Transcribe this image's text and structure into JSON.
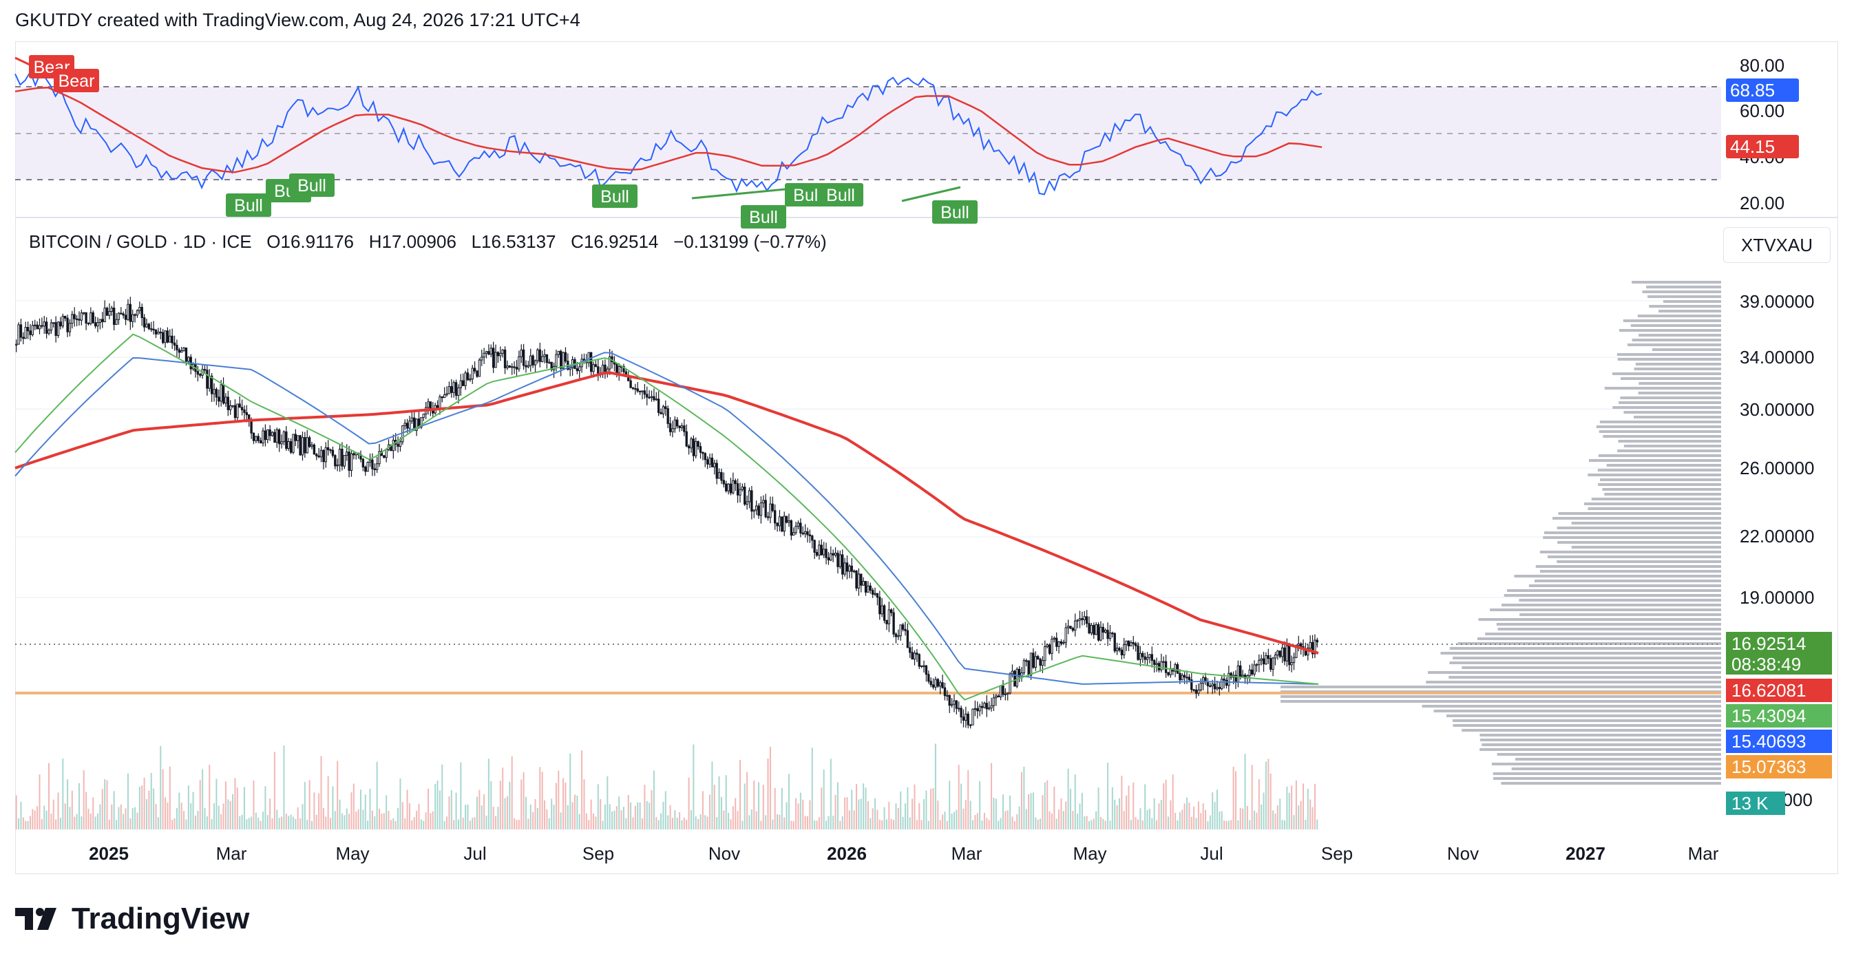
{
  "header": {
    "text": "GKUTDY created with TradingView.com, Aug 24, 2026 17:21 UTC+4"
  },
  "legend": {
    "title": "BITCOIN / GOLD · 1D · ICE",
    "open": "O16.91176",
    "high": "H17.00906",
    "low": "L16.53137",
    "close": "C16.92514",
    "change": "−0.13199 (−0.77%)"
  },
  "symbol": "XTVXAU",
  "price_tags": {
    "last": "16.92514",
    "countdown": "08:38:49",
    "ma200": "16.62081",
    "ma20": "15.43094",
    "ma50": "15.40693",
    "hline": "15.07363",
    "volume": "13 K"
  },
  "rsi_tags": {
    "rsi": "68.85",
    "ma": "44.15"
  },
  "rsi_axis": [
    "80.00",
    "60.00",
    "40.00",
    "20.00"
  ],
  "price_axis": [
    "39.00000",
    "34.00000",
    "30.00000",
    "26.00000",
    "22.00000",
    "19.00000",
    "0000"
  ],
  "x_axis": [
    {
      "label": "2025",
      "bold": true
    },
    {
      "label": "Mar",
      "bold": false
    },
    {
      "label": "May",
      "bold": false
    },
    {
      "label": "Jul",
      "bold": false
    },
    {
      "label": "Sep",
      "bold": false
    },
    {
      "label": "Nov",
      "bold": false
    },
    {
      "label": "2026",
      "bold": true
    },
    {
      "label": "Mar",
      "bold": false
    },
    {
      "label": "May",
      "bold": false
    },
    {
      "label": "Jul",
      "bold": false
    },
    {
      "label": "Sep",
      "bold": false
    },
    {
      "label": "Nov",
      "bold": false
    },
    {
      "label": "2027",
      "bold": true
    },
    {
      "label": "Mar",
      "bold": false
    }
  ],
  "rsi_signals": [
    {
      "label": "Bear",
      "kind": "bear"
    },
    {
      "label": "Bear",
      "kind": "bear"
    },
    {
      "label": "Bull",
      "kind": "bull"
    },
    {
      "label": "Bull",
      "kind": "bull"
    },
    {
      "label": "Bull",
      "kind": "bull"
    },
    {
      "label": "Bull",
      "kind": "bull"
    },
    {
      "label": "Bull",
      "kind": "bull"
    },
    {
      "label": "Bull",
      "kind": "bull"
    },
    {
      "label": "Bull",
      "kind": "bull"
    },
    {
      "label": "Bull",
      "kind": "bull"
    }
  ],
  "logo": {
    "text": "TradingView"
  },
  "colors": {
    "ma200": "#e53935",
    "ma50": "#4a7fd4",
    "ma20": "#5cb85c",
    "hline": "#f0b57a",
    "rsi": "#2962ff",
    "rsi_ma": "#e53935",
    "bull": "#43a047",
    "bear": "#e53935",
    "last_price": "#4a9a3a",
    "volume_tag": "#26a69a",
    "rsi_band": "#ede7f6"
  },
  "chart_data": {
    "type": "line",
    "title": "BITCOIN / GOLD · 1D · ICE",
    "x": [
      "2024-12",
      "2025-01",
      "2025-03",
      "2025-05",
      "2025-07",
      "2025-09",
      "2025-11",
      "2026-01",
      "2026-03",
      "2026-05",
      "2026-07",
      "2026-08"
    ],
    "ylim": [
      13,
      41
    ],
    "series": [
      {
        "name": "",
        "values": [
          36.0,
          38.0,
          28.5,
          26.0,
          34.0,
          33.5,
          25.0,
          20.5,
          14.0,
          17.8,
          15.3,
          16.9
        ]
      },
      {
        "name": "",
        "values": [
          26.0,
          28.5,
          29.2,
          29.6,
          30.3,
          32.8,
          31.0,
          28.0,
          23.0,
          20.5,
          18.0,
          16.6
        ]
      },
      {
        "name": "",
        "values": [
          25.5,
          34.0,
          33.0,
          27.5,
          30.5,
          34.5,
          30.0,
          23.0,
          16.0,
          15.4,
          15.5,
          15.4
        ]
      },
      {
        "name": "",
        "values": [
          27.0,
          36.0,
          30.5,
          26.5,
          32.0,
          34.0,
          28.0,
          21.5,
          14.8,
          16.5,
          15.8,
          15.4
        ]
      }
    ],
    "hline": 15.07,
    "rsi": {
      "ylim": [
        15,
        85
      ],
      "levels": [
        70,
        50,
        30
      ],
      "values": [
        72,
        74,
        55,
        46,
        38,
        32,
        29,
        35,
        44,
        62,
        60,
        68,
        52,
        45,
        34,
        38,
        46,
        40,
        33,
        30,
        36,
        48,
        44,
        28,
        26,
        40,
        54,
        62,
        70,
        72,
        62,
        48,
        40,
        26,
        34,
        48,
        58,
        44,
        32,
        36,
        48,
        62,
        68
      ],
      "ma_values": [
        68,
        70,
        64,
        56,
        48,
        40,
        35,
        33,
        36,
        44,
        52,
        58,
        58,
        54,
        48,
        44,
        42,
        41,
        38,
        35,
        34,
        38,
        42,
        40,
        36,
        36,
        40,
        48,
        58,
        66,
        66,
        60,
        50,
        40,
        36,
        38,
        44,
        48,
        44,
        40,
        40,
        46,
        44
      ]
    }
  }
}
